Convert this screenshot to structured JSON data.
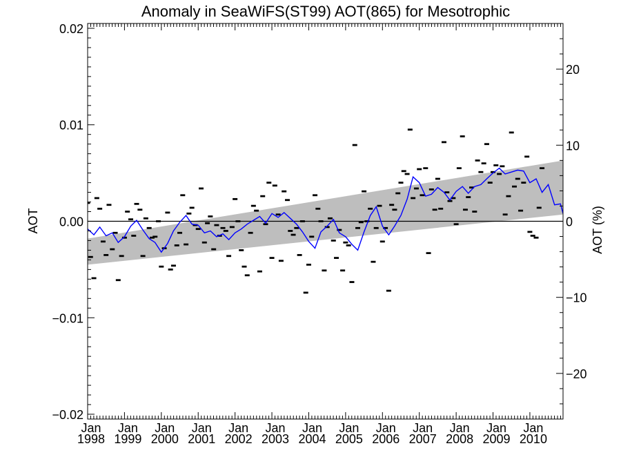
{
  "chart_data": {
    "type": "scatter",
    "title": "Anomaly in SeaWiFS(ST99) AOT(865) for Mesotrophic",
    "ylabel": "AOT",
    "y2label": "AOT (%)",
    "xlim": [
      1998.0,
      2010.9
    ],
    "ylim": [
      -0.0205,
      0.0205
    ],
    "y2lim": [
      -26,
      26
    ],
    "yticks": [
      {
        "value": -0.02,
        "label": "−0.02"
      },
      {
        "value": -0.01,
        "label": "−0.01"
      },
      {
        "value": 0.0,
        "label": "0.00"
      },
      {
        "value": 0.01,
        "label": "0.01"
      },
      {
        "value": 0.02,
        "label": "0.02"
      }
    ],
    "y2ticks": [
      {
        "value": -20,
        "label": "−20"
      },
      {
        "value": -10,
        "label": "−10"
      },
      {
        "value": 0,
        "label": "0"
      },
      {
        "value": 10,
        "label": "10"
      },
      {
        "value": 20,
        "label": "20"
      }
    ],
    "xticks": [
      {
        "value": 1998,
        "month": "Jan",
        "year": "1998"
      },
      {
        "value": 1999,
        "month": "Jan",
        "year": "1999"
      },
      {
        "value": 2000,
        "month": "Jan",
        "year": "2000"
      },
      {
        "value": 2001,
        "month": "Jan",
        "year": "2001"
      },
      {
        "value": 2002,
        "month": "Jan",
        "year": "2002"
      },
      {
        "value": 2003,
        "month": "Jan",
        "year": "2003"
      },
      {
        "value": 2004,
        "month": "Jan",
        "year": "2004"
      },
      {
        "value": 2005,
        "month": "Jan",
        "year": "2005"
      },
      {
        "value": 2006,
        "month": "Jan",
        "year": "2006"
      },
      {
        "value": 2007,
        "month": "Jan",
        "year": "2007"
      },
      {
        "value": 2008,
        "month": "Jan",
        "year": "2008"
      },
      {
        "value": 2009,
        "month": "Jan",
        "year": "2009"
      },
      {
        "value": 2010,
        "month": "Jan",
        "year": "2010"
      }
    ],
    "trend_band": {
      "x": [
        1998.0,
        2010.9
      ],
      "upper": [
        -0.0018,
        0.0063
      ],
      "lower": [
        -0.0045,
        0.0007
      ]
    },
    "zero_line": 0.0,
    "monthly_anomalies": [
      {
        "x": 1998.0,
        "y": 0.0019
      },
      {
        "x": 1998.08,
        "y": -0.0037
      },
      {
        "x": 1998.17,
        "y": -0.0059
      },
      {
        "x": 1998.25,
        "y": 0.0024
      },
      {
        "x": 1998.33,
        "y": 0.0013
      },
      {
        "x": 1998.42,
        "y": -0.0021
      },
      {
        "x": 1998.5,
        "y": -0.0035
      },
      {
        "x": 1998.58,
        "y": 0.0017
      },
      {
        "x": 1998.67,
        "y": -0.0029
      },
      {
        "x": 1998.75,
        "y": -0.0012
      },
      {
        "x": 1998.83,
        "y": -0.0061
      },
      {
        "x": 1998.92,
        "y": -0.0036
      },
      {
        "x": 1999.0,
        "y": -0.0017
      },
      {
        "x": 1999.08,
        "y": 0.001
      },
      {
        "x": 1999.17,
        "y": 0.0002
      },
      {
        "x": 1999.25,
        "y": -0.0015
      },
      {
        "x": 1999.33,
        "y": 0.0018
      },
      {
        "x": 1999.42,
        "y": 0.0012
      },
      {
        "x": 1999.5,
        "y": -0.0036
      },
      {
        "x": 1999.58,
        "y": 0.0003
      },
      {
        "x": 1999.67,
        "y": -0.0007
      },
      {
        "x": 1999.75,
        "y": -0.0017
      },
      {
        "x": 1999.83,
        "y": -0.0016
      },
      {
        "x": 1999.92,
        "y": 0.0
      },
      {
        "x": 2000.0,
        "y": -0.0047
      },
      {
        "x": 2000.08,
        "y": -0.0028
      },
      {
        "x": 2000.17,
        "y": 0.0009
      },
      {
        "x": 2000.25,
        "y": -0.005
      },
      {
        "x": 2000.33,
        "y": -0.0046
      },
      {
        "x": 2000.42,
        "y": -0.0025
      },
      {
        "x": 2000.5,
        "y": -0.0012
      },
      {
        "x": 2000.58,
        "y": 0.0027
      },
      {
        "x": 2000.67,
        "y": -0.0024
      },
      {
        "x": 2000.75,
        "y": 0.0008
      },
      {
        "x": 2000.83,
        "y": 0.0014
      },
      {
        "x": 2000.92,
        "y": -0.0004
      },
      {
        "x": 2001.0,
        "y": -0.0008
      },
      {
        "x": 2001.08,
        "y": 0.0034
      },
      {
        "x": 2001.17,
        "y": -0.0022
      },
      {
        "x": 2001.25,
        "y": -0.0002
      },
      {
        "x": 2001.33,
        "y": 0.0005
      },
      {
        "x": 2001.42,
        "y": -0.0029
      },
      {
        "x": 2001.5,
        "y": -0.0004
      },
      {
        "x": 2001.58,
        "y": -0.0015
      },
      {
        "x": 2001.67,
        "y": -0.0007
      },
      {
        "x": 2001.75,
        "y": -0.001
      },
      {
        "x": 2001.83,
        "y": -0.0036
      },
      {
        "x": 2001.92,
        "y": -0.0006
      },
      {
        "x": 2002.0,
        "y": 0.0023
      },
      {
        "x": 2002.08,
        "y": 0.0
      },
      {
        "x": 2002.17,
        "y": -0.003
      },
      {
        "x": 2002.25,
        "y": -0.0047
      },
      {
        "x": 2002.33,
        "y": -0.0056
      },
      {
        "x": 2002.42,
        "y": -0.0012
      },
      {
        "x": 2002.5,
        "y": 0.0016
      },
      {
        "x": 2002.58,
        "y": 0.0011
      },
      {
        "x": 2002.67,
        "y": -0.0052
      },
      {
        "x": 2002.75,
        "y": 0.0026
      },
      {
        "x": 2002.83,
        "y": -0.0003
      },
      {
        "x": 2002.92,
        "y": 0.004
      },
      {
        "x": 2003.0,
        "y": -0.0038
      },
      {
        "x": 2003.08,
        "y": 0.0037
      },
      {
        "x": 2003.17,
        "y": 0.0007
      },
      {
        "x": 2003.25,
        "y": -0.0041
      },
      {
        "x": 2003.33,
        "y": 0.0031
      },
      {
        "x": 2003.42,
        "y": 0.0022
      },
      {
        "x": 2003.5,
        "y": -0.001
      },
      {
        "x": 2003.58,
        "y": -0.0014
      },
      {
        "x": 2003.67,
        "y": -0.0007
      },
      {
        "x": 2003.75,
        "y": -0.0035
      },
      {
        "x": 2003.83,
        "y": 0.0
      },
      {
        "x": 2003.92,
        "y": -0.0074
      },
      {
        "x": 2004.0,
        "y": -0.0045
      },
      {
        "x": 2004.08,
        "y": -0.0016
      },
      {
        "x": 2004.17,
        "y": 0.0027
      },
      {
        "x": 2004.25,
        "y": 0.0013
      },
      {
        "x": 2004.33,
        "y": 0.0
      },
      {
        "x": 2004.42,
        "y": -0.0051
      },
      {
        "x": 2004.5,
        "y": -0.0006
      },
      {
        "x": 2004.58,
        "y": 0.0003
      },
      {
        "x": 2004.67,
        "y": -0.002
      },
      {
        "x": 2004.75,
        "y": -0.0038
      },
      {
        "x": 2004.83,
        "y": -0.0009
      },
      {
        "x": 2004.92,
        "y": -0.0051
      },
      {
        "x": 2005.0,
        "y": -0.0022
      },
      {
        "x": 2005.08,
        "y": -0.0025
      },
      {
        "x": 2005.17,
        "y": -0.0063
      },
      {
        "x": 2005.25,
        "y": 0.0079
      },
      {
        "x": 2005.33,
        "y": -0.0007
      },
      {
        "x": 2005.42,
        "y": -0.0001
      },
      {
        "x": 2005.5,
        "y": 0.0031
      },
      {
        "x": 2005.58,
        "y": 0.0
      },
      {
        "x": 2005.67,
        "y": 0.0013
      },
      {
        "x": 2005.75,
        "y": -0.0042
      },
      {
        "x": 2005.83,
        "y": -0.0007
      },
      {
        "x": 2005.92,
        "y": 0.0016
      },
      {
        "x": 2006.0,
        "y": -0.0021
      },
      {
        "x": 2006.08,
        "y": -0.0007
      },
      {
        "x": 2006.17,
        "y": -0.0072
      },
      {
        "x": 2006.25,
        "y": 0.0017
      },
      {
        "x": 2006.33,
        "y": 0.0012
      },
      {
        "x": 2006.42,
        "y": 0.0029
      },
      {
        "x": 2006.5,
        "y": 0.004
      },
      {
        "x": 2006.58,
        "y": 0.0052
      },
      {
        "x": 2006.67,
        "y": 0.0049
      },
      {
        "x": 2006.75,
        "y": 0.0095
      },
      {
        "x": 2006.83,
        "y": 0.0024
      },
      {
        "x": 2006.92,
        "y": 0.0034
      },
      {
        "x": 2007.0,
        "y": 0.0054
      },
      {
        "x": 2007.08,
        "y": 0.0027
      },
      {
        "x": 2007.17,
        "y": 0.0055
      },
      {
        "x": 2007.25,
        "y": -0.0033
      },
      {
        "x": 2007.33,
        "y": 0.0033
      },
      {
        "x": 2007.42,
        "y": 0.0012
      },
      {
        "x": 2007.5,
        "y": 0.0044
      },
      {
        "x": 2007.58,
        "y": 0.0013
      },
      {
        "x": 2007.67,
        "y": 0.0082
      },
      {
        "x": 2007.75,
        "y": 0.003
      },
      {
        "x": 2007.83,
        "y": 0.0021
      },
      {
        "x": 2007.92,
        "y": 0.0024
      },
      {
        "x": 2008.0,
        "y": -0.0003
      },
      {
        "x": 2008.08,
        "y": 0.0055
      },
      {
        "x": 2008.17,
        "y": 0.0088
      },
      {
        "x": 2008.25,
        "y": 0.0012
      },
      {
        "x": 2008.33,
        "y": 0.0025
      },
      {
        "x": 2008.42,
        "y": 0.0035
      },
      {
        "x": 2008.5,
        "y": 0.001
      },
      {
        "x": 2008.58,
        "y": 0.0063
      },
      {
        "x": 2008.67,
        "y": 0.0051
      },
      {
        "x": 2008.75,
        "y": 0.006
      },
      {
        "x": 2008.83,
        "y": 0.008
      },
      {
        "x": 2008.92,
        "y": 0.004
      },
      {
        "x": 2009.0,
        "y": 0.0051
      },
      {
        "x": 2009.08,
        "y": 0.0058
      },
      {
        "x": 2009.17,
        "y": 0.0049
      },
      {
        "x": 2009.25,
        "y": 0.0057
      },
      {
        "x": 2009.33,
        "y": 0.0007
      },
      {
        "x": 2009.42,
        "y": 0.0026
      },
      {
        "x": 2009.5,
        "y": 0.0092
      },
      {
        "x": 2009.58,
        "y": 0.0036
      },
      {
        "x": 2009.67,
        "y": 0.0044
      },
      {
        "x": 2009.75,
        "y": 0.0011
      },
      {
        "x": 2009.83,
        "y": 0.004
      },
      {
        "x": 2009.92,
        "y": 0.0067
      },
      {
        "x": 2010.0,
        "y": -0.0011
      },
      {
        "x": 2010.08,
        "y": -0.0015
      },
      {
        "x": 2010.17,
        "y": -0.0017
      },
      {
        "x": 2010.25,
        "y": 0.0014
      },
      {
        "x": 2010.33,
        "y": 0.0055
      }
    ],
    "running_mean": {
      "x": [
        1998.0,
        1998.17,
        1998.33,
        1998.5,
        1998.67,
        1998.83,
        1999.0,
        1999.17,
        1999.33,
        1999.5,
        1999.67,
        1999.83,
        2000.0,
        2000.17,
        2000.33,
        2000.5,
        2000.67,
        2000.83,
        2001.0,
        2001.17,
        2001.33,
        2001.5,
        2001.67,
        2001.83,
        2002.0,
        2002.17,
        2002.33,
        2002.5,
        2002.67,
        2002.83,
        2003.0,
        2003.17,
        2003.33,
        2003.5,
        2003.67,
        2003.83,
        2004.0,
        2004.17,
        2004.33,
        2004.5,
        2004.67,
        2004.83,
        2005.0,
        2005.17,
        2005.33,
        2005.5,
        2005.67,
        2005.83,
        2006.0,
        2006.17,
        2006.33,
        2006.5,
        2006.67,
        2006.83,
        2007.0,
        2007.17,
        2007.33,
        2007.5,
        2007.67,
        2007.83,
        2008.0,
        2008.17,
        2008.33,
        2008.5,
        2008.67,
        2008.83,
        2009.0,
        2009.17,
        2009.33,
        2009.5,
        2009.67,
        2009.83,
        2010.0,
        2010.17,
        2010.33,
        2010.5,
        2010.67,
        2010.83,
        2010.9
      ],
      "y": [
        -0.0008,
        -0.0014,
        -0.0006,
        -0.0015,
        -0.0012,
        -0.0022,
        -0.0016,
        -0.0005,
        0.0001,
        -0.0009,
        -0.0018,
        -0.0022,
        -0.0032,
        -0.0023,
        -0.001,
        -0.0001,
        0.0006,
        -0.0003,
        -0.0004,
        -0.0012,
        -0.001,
        -0.0016,
        -0.0013,
        -0.0019,
        -0.0012,
        -0.0008,
        -0.0003,
        0.0001,
        0.0005,
        -0.0002,
        0.0008,
        0.0004,
        0.0009,
        0.0003,
        -0.0003,
        -0.0011,
        -0.0021,
        -0.0028,
        -0.0011,
        -0.0005,
        0.0002,
        -0.0012,
        -0.0016,
        -0.0024,
        -0.003,
        -0.0011,
        0.0006,
        0.0015,
        -0.0005,
        -0.0014,
        -0.0005,
        0.0006,
        0.0023,
        0.0046,
        0.004,
        0.0026,
        0.0028,
        0.0035,
        0.003,
        0.0022,
        0.0031,
        0.0036,
        0.0029,
        0.0036,
        0.0038,
        0.0044,
        0.005,
        0.0055,
        0.0049,
        0.0051,
        0.0053,
        0.0052,
        0.004,
        0.0044,
        0.003,
        0.0038,
        0.0017,
        0.0018,
        0.0008
      ]
    },
    "colors": {
      "band": "#bebebe",
      "running_mean": "#0000ff",
      "points": "#000000",
      "axes": "#000000",
      "background": "#ffffff"
    }
  }
}
